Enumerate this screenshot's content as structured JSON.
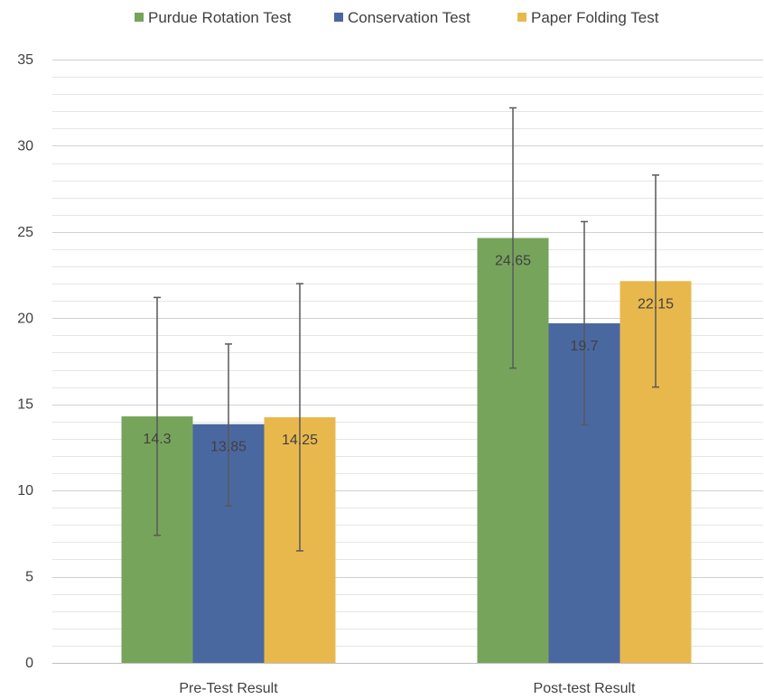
{
  "chart_data": {
    "type": "bar",
    "categories": [
      "Pre-Test Result",
      "Post-test Result"
    ],
    "series": [
      {
        "name": "Purdue Rotation Test",
        "color": "#77A45B",
        "values": [
          14.3,
          24.65
        ],
        "labels": [
          "14.3",
          "24.65"
        ],
        "error_low": [
          7.4,
          17.1
        ],
        "error_high": [
          21.2,
          32.2
        ]
      },
      {
        "name": "Conservation Test",
        "color": "#4A68A0",
        "values": [
          13.85,
          19.7
        ],
        "labels": [
          "13.85",
          "19.7"
        ],
        "error_low": [
          9.1,
          13.8
        ],
        "error_high": [
          18.5,
          25.6
        ]
      },
      {
        "name": "Paper Folding Test",
        "color": "#E9B84D",
        "values": [
          14.25,
          22.15
        ],
        "labels": [
          "14.25",
          "22.15"
        ],
        "error_low": [
          6.5,
          16.0
        ],
        "error_high": [
          22.0,
          28.3
        ]
      }
    ],
    "ylim": [
      0,
      35
    ],
    "y_ticks": [
      "0",
      "5",
      "10",
      "15",
      "20",
      "25",
      "30",
      "35"
    ],
    "gridlines": true,
    "legend_position": "top"
  }
}
